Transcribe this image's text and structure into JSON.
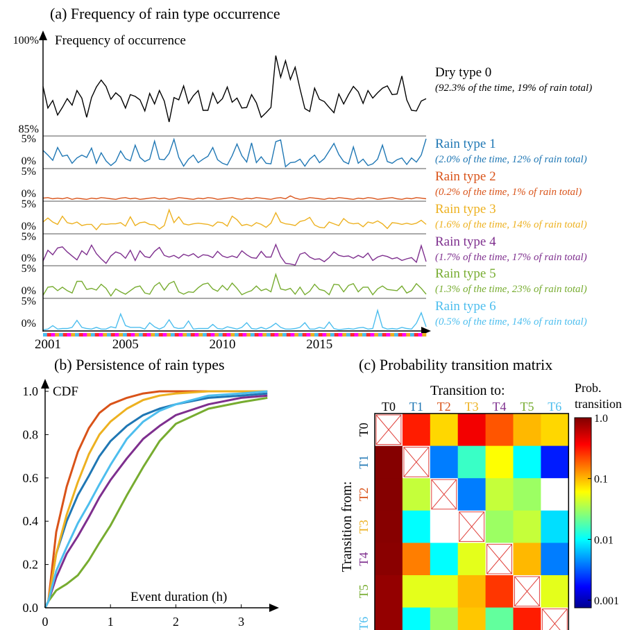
{
  "chart_data": [
    {
      "type": "line",
      "title": "(a) Frequency of rain type occurrence",
      "ylabel": "Frequency of occurrence",
      "x_start": 2000.75,
      "x_step": 0.25,
      "x_ticks": [
        "2001",
        "2005",
        "2010",
        "2015"
      ],
      "x_tick_values": [
        2001,
        2005,
        2010,
        2015
      ],
      "colors": {
        "T0": "#000000",
        "T1": "#1f77b4",
        "T2": "#d95319",
        "T3": "#edb120",
        "T4": "#7e2f8e",
        "T5": "#77ac30",
        "T6": "#4dbeee"
      },
      "panels": [
        {
          "name": "Dry type 0",
          "note": "(92.3% of the time, 19% of rain total)",
          "color": "#000000",
          "top_label": "100%",
          "bottom_label": "85%",
          "ylim": [
            85,
            100
          ],
          "values": [
            93.5,
            89.8,
            91.1,
            88.6,
            89.9,
            91.4,
            90.3,
            92.8,
            91.5,
            88.2,
            91.6,
            93.4,
            94.6,
            93.5,
            91.3,
            92.4,
            91.7,
            89.8,
            92.1,
            91.8,
            91.2,
            89.3,
            92.3,
            90.5,
            92.8,
            91.0,
            87.4,
            91.6,
            91.2,
            93.6,
            90.6,
            91.9,
            92.8,
            89.4,
            89.4,
            92.4,
            90.6,
            91.4,
            93.4,
            90.8,
            91.5,
            89.8,
            89.9,
            92.1,
            90.7,
            88.2,
            89.0,
            89.9,
            98.8,
            95.1,
            97.9,
            94.7,
            96.8,
            93.1,
            89.7,
            89.2,
            93.2,
            91.3,
            90.9,
            89.9,
            89.0,
            92.2,
            90.5,
            92.1,
            93.5,
            92.6,
            90.6,
            92.8,
            91.5,
            92.4,
            93.2,
            93.6,
            92.1,
            92.2,
            95.3,
            91.2,
            89.4,
            89.3,
            91.0,
            91.4
          ]
        },
        {
          "name": "Rain type 1",
          "note": "(2.0% of the time, 12% of rain total)",
          "color": "#1f77b4",
          "top_label": "5%",
          "bottom_label": "0%",
          "ylim": [
            0,
            5
          ],
          "values": [
            3.0,
            2.2,
            1.3,
            3.5,
            2.0,
            2.2,
            0.8,
            1.7,
            2.2,
            1.8,
            3.4,
            0.8,
            2.6,
            1.2,
            0.4,
            1.1,
            2.9,
            1.6,
            1.2,
            3.9,
            1.8,
            1.1,
            1.5,
            4.6,
            1.5,
            1.4,
            2.5,
            4.9,
            1.8,
            0.3,
            1.5,
            2.2,
            0.9,
            1.5,
            2.0,
            3.5,
            1.4,
            0.8,
            0.5,
            2.1,
            4.1,
            2.1,
            1.0,
            4.3,
            0.9,
            1.9,
            0.8,
            0.7,
            4.5,
            4.8,
            0.2,
            0.9,
            1.0,
            1.5,
            0.3,
            1.5,
            2.2,
            0.9,
            1.6,
            2.9,
            4.2,
            2.3,
            1.1,
            0.7,
            3.6,
            0.8,
            1.5,
            0.4,
            0.7,
            1.5,
            3.9,
            1.1,
            0.8,
            1.4,
            1.7,
            0.6,
            1.7,
            1.0,
            2.2,
            5.0
          ]
        },
        {
          "name": "Rain type 2",
          "note": "(0.2% of the time, 1% of rain total)",
          "color": "#d95319",
          "top_label": "5%",
          "bottom_label": "0%",
          "ylim": [
            0,
            5
          ],
          "values": [
            0.4,
            0.5,
            0.3,
            0.4,
            0.3,
            0.5,
            0.2,
            0.4,
            0.3,
            0.2,
            0.4,
            0.3,
            0.5,
            0.4,
            0.3,
            0.2,
            0.4,
            0.5,
            0.3,
            0.4,
            0.2,
            0.3,
            0.4,
            0.5,
            0.3,
            0.4,
            0.2,
            0.3,
            0.5,
            0.4,
            0.3,
            0.2,
            0.4,
            0.3,
            0.5,
            0.4,
            0.2,
            0.3,
            0.4,
            0.5,
            0.3,
            0.2,
            0.4,
            0.3,
            0.5,
            0.4,
            0.3,
            0.2,
            0.4,
            0.5,
            0.3,
            0.8,
            0.4,
            0.2,
            0.3,
            0.5,
            0.4,
            0.3,
            0.2,
            0.4,
            0.3,
            0.5,
            0.4,
            0.3,
            0.2,
            0.4,
            0.3,
            0.5,
            0.4,
            0.2,
            0.3,
            0.4,
            0.5,
            0.3,
            0.2,
            0.4,
            0.3,
            0.5,
            0.4,
            0.3
          ]
        },
        {
          "name": "Rain type 3",
          "note": "(1.6% of the time, 14% of rain total)",
          "color": "#edb120",
          "top_label": "5%",
          "bottom_label": "0%",
          "ylim": [
            0,
            5
          ],
          "values": [
            1.9,
            2.6,
            1.9,
            1.5,
            2.9,
            1.8,
            1.6,
            1.9,
            1.3,
            1.5,
            1.5,
            0.6,
            1.6,
            1.5,
            1.6,
            1.6,
            1.8,
            1.2,
            2.8,
            1.3,
            1.8,
            1.9,
            1.5,
            1.4,
            0.7,
            1.3,
            4.0,
            1.8,
            2.8,
            1.6,
            1.4,
            1.6,
            1.7,
            1.6,
            1.5,
            1.2,
            1.9,
            1.8,
            1.2,
            2.9,
            2.3,
            1.3,
            1.5,
            1.2,
            1.8,
            1.5,
            1.0,
            1.7,
            3.5,
            1.9,
            1.6,
            1.5,
            1.3,
            2.0,
            2.2,
            2.7,
            1.4,
            1.0,
            0.9,
            1.9,
            1.6,
            1.3,
            2.5,
            1.8,
            1.6,
            1.7,
            1.1,
            1.9,
            1.7,
            2.1,
            1.6,
            0.8,
            1.8,
            1.7,
            1.5,
            1.7,
            1.5,
            1.7,
            2.2,
            1.5
          ]
        },
        {
          "name": "Rain type 4",
          "note": "(1.7% of the time, 17% of rain total)",
          "color": "#7e2f8e",
          "top_label": "5%",
          "bottom_label": "0%",
          "ylim": [
            0,
            5
          ],
          "values": [
            0.7,
            2.6,
            1.8,
            3.0,
            3.2,
            2.3,
            1.6,
            0.9,
            2.5,
            1.8,
            3.5,
            2.0,
            1.1,
            0.3,
            1.6,
            2.3,
            2.0,
            1.2,
            2.6,
            0.8,
            2.5,
            1.5,
            1.3,
            2.4,
            3.1,
            1.7,
            1.4,
            1.7,
            1.2,
            1.9,
            1.6,
            2.0,
            1.3,
            1.8,
            1.7,
            1.3,
            2.4,
            1.6,
            1.3,
            1.6,
            1.3,
            2.5,
            1.8,
            1.3,
            1.2,
            2.4,
            1.4,
            1.4,
            3.6,
            1.5,
            0.3,
            0.2,
            0.0,
            1.9,
            2.2,
            1.4,
            1.0,
            1.1,
            0.6,
            1.3,
            2.3,
            1.7,
            1.5,
            1.6,
            1.2,
            1.7,
            1.3,
            2.1,
            0.8,
            1.4,
            1.7,
            1.5,
            1.1,
            1.3,
            0.8,
            1.1,
            1.3,
            0.5,
            3.4,
            0.6
          ]
        },
        {
          "name": "Rain type 5",
          "note": "(1.3% of the time, 23% of rain total)",
          "color": "#77ac30",
          "top_label": "5%",
          "bottom_label": "0%",
          "ylim": [
            0,
            5
          ],
          "values": [
            0.4,
            1.8,
            1.9,
            1.2,
            1.8,
            1.2,
            0.8,
            2.8,
            2.8,
            1.4,
            1.6,
            1.3,
            2.3,
            1.6,
            0.3,
            1.5,
            1.0,
            0.6,
            1.2,
            1.8,
            2.0,
            0.8,
            0.6,
            2.0,
            2.6,
            1.3,
            2.4,
            2.8,
            1.0,
            0.6,
            1.0,
            0.9,
            1.7,
            2.3,
            2.5,
            1.5,
            1.1,
            2.1,
            1.3,
            2.5,
            1.6,
            0.5,
            0.9,
            1.2,
            2.0,
            1.2,
            1.5,
            1.0,
            4.0,
            1.5,
            1.3,
            1.6,
            0.6,
            1.8,
            0.5,
            1.1,
            2.3,
            1.4,
            1.2,
            0.5,
            2.3,
            2.2,
            1.0,
            2.1,
            2.4,
            1.0,
            1.8,
            1.8,
            0.5,
            1.5,
            2.0,
            1.4,
            1.3,
            1.2,
            2.0,
            0.8,
            1.2,
            2.4,
            1.6,
            0.6
          ]
        },
        {
          "name": "Rain type 6",
          "note": "(0.5% of the time, 14% of rain total)",
          "color": "#4dbeee",
          "top_label": "5%",
          "bottom_label": "0%",
          "ylim": [
            0,
            5
          ],
          "values": [
            0.1,
            0.2,
            0.8,
            0.2,
            0.3,
            0.3,
            0.5,
            1.7,
            0.5,
            0.3,
            0.2,
            0.5,
            0.2,
            0.2,
            0.6,
            0.4,
            2.8,
            0.8,
            0.5,
            0.5,
            0.5,
            0.2,
            1.3,
            0.6,
            0.2,
            0.6,
            1.8,
            0.5,
            0.3,
            0.4,
            1.6,
            0.2,
            0.3,
            0.3,
            0.3,
            1.0,
            0.3,
            0.2,
            0.6,
            0.4,
            0.2,
            0.5,
            1.3,
            0.3,
            0.2,
            0.5,
            0.2,
            0.6,
            1.2,
            0.5,
            0.2,
            0.2,
            0.3,
            0.5,
            1.3,
            0.2,
            0.2,
            0.5,
            0.3,
            1.4,
            0.3,
            0.1,
            0.2,
            0.3,
            0.2,
            0.4,
            0.5,
            0.2,
            0.3,
            3.4,
            0.5,
            0.2,
            0.3,
            0.2,
            0.5,
            0.3,
            0.2,
            1.2,
            3.0,
            0.6
          ]
        }
      ]
    },
    {
      "type": "line",
      "title": "(b) Persistence of rain types",
      "xlabel": "Event duration (h)",
      "ylabel": "CDF",
      "xlim": [
        0,
        3.45
      ],
      "ylim": [
        0,
        1.0
      ],
      "x_ticks": [
        0,
        1,
        2,
        3
      ],
      "y_ticks": [
        "0.0",
        "0.2",
        "0.4",
        "0.6",
        "0.8",
        "1.0"
      ],
      "y_tick_values": [
        0,
        0.2,
        0.4,
        0.6,
        0.8,
        1.0
      ],
      "series": [
        {
          "key": "T1",
          "color": "#1f77b4",
          "x": [
            0.05,
            0.17,
            0.33,
            0.5,
            0.67,
            0.83,
            1.0,
            1.25,
            1.5,
            1.75,
            2.0,
            2.5,
            3.0,
            3.4
          ],
          "y": [
            0.03,
            0.25,
            0.4,
            0.52,
            0.61,
            0.7,
            0.77,
            0.84,
            0.89,
            0.92,
            0.94,
            0.97,
            0.98,
            0.99
          ]
        },
        {
          "key": "T2",
          "color": "#d95319",
          "x": [
            0.05,
            0.17,
            0.33,
            0.5,
            0.67,
            0.83,
            1.0,
            1.25,
            1.5,
            1.75,
            2.0,
            2.5,
            3.0,
            3.4
          ],
          "y": [
            0.03,
            0.35,
            0.56,
            0.72,
            0.83,
            0.9,
            0.94,
            0.97,
            0.99,
            1.0,
            1.0,
            1.0,
            1.0,
            1.0
          ]
        },
        {
          "key": "T3",
          "color": "#edb120",
          "x": [
            0.05,
            0.17,
            0.33,
            0.5,
            0.67,
            0.83,
            1.0,
            1.25,
            1.5,
            1.75,
            2.0,
            2.5,
            3.0,
            3.4
          ],
          "y": [
            0.03,
            0.25,
            0.43,
            0.58,
            0.71,
            0.8,
            0.86,
            0.92,
            0.96,
            0.98,
            0.99,
            1.0,
            1.0,
            1.0
          ]
        },
        {
          "key": "T4",
          "color": "#7e2f8e",
          "x": [
            0.05,
            0.17,
            0.33,
            0.5,
            0.67,
            0.83,
            1.0,
            1.25,
            1.5,
            1.75,
            2.0,
            2.5,
            3.0,
            3.4
          ],
          "y": [
            0.03,
            0.14,
            0.25,
            0.33,
            0.42,
            0.51,
            0.59,
            0.69,
            0.78,
            0.84,
            0.89,
            0.94,
            0.97,
            0.98
          ]
        },
        {
          "key": "T5",
          "color": "#77ac30",
          "x": [
            0.05,
            0.17,
            0.33,
            0.5,
            0.67,
            0.83,
            1.0,
            1.25,
            1.5,
            1.75,
            2.0,
            2.5,
            3.0,
            3.4
          ],
          "y": [
            0.03,
            0.08,
            0.11,
            0.15,
            0.22,
            0.3,
            0.38,
            0.52,
            0.65,
            0.77,
            0.85,
            0.92,
            0.95,
            0.97
          ]
        },
        {
          "key": "T6",
          "color": "#4dbeee",
          "x": [
            0.05,
            0.17,
            0.33,
            0.5,
            0.67,
            0.83,
            1.0,
            1.25,
            1.5,
            1.75,
            2.0,
            2.5,
            3.0,
            3.4
          ],
          "y": [
            0.03,
            0.17,
            0.28,
            0.39,
            0.48,
            0.57,
            0.66,
            0.78,
            0.86,
            0.91,
            0.94,
            0.98,
            0.99,
            1.0
          ]
        }
      ]
    },
    {
      "type": "heatmap",
      "title": "(c) Probability transition matrix",
      "xlabel": "Transition to:",
      "ylabel": "Transition from:",
      "labels": [
        "T0",
        "T1",
        "T2",
        "T3",
        "T4",
        "T5",
        "T6"
      ],
      "label_colors": [
        "#000000",
        "#1f77b4",
        "#d95319",
        "#edb120",
        "#7e2f8e",
        "#77ac30",
        "#4dbeee"
      ],
      "colorbar_title": [
        "Prob.",
        "transition"
      ],
      "colorbar_ticks": [
        "1.0",
        "0.1",
        "0.01",
        "0.001"
      ],
      "colorbar_tick_values": [
        1.0,
        0.1,
        0.01,
        0.001
      ],
      "scale": "log",
      "vmin": 0.00075,
      "vmax": 1.0,
      "matrix": [
        [
          null,
          0.3,
          0.08,
          0.4,
          0.2,
          0.1,
          0.08
        ],
        [
          0.96,
          null,
          0.004,
          0.015,
          0.06,
          0.01,
          0.002
        ],
        [
          0.96,
          0.04,
          null,
          0.004,
          0.04,
          0.03,
          0.0
        ],
        [
          0.94,
          0.01,
          0.0,
          null,
          0.03,
          0.04,
          0.008
        ],
        [
          0.92,
          0.15,
          0.01,
          0.05,
          null,
          0.1,
          0.004
        ],
        [
          0.85,
          0.05,
          0.05,
          0.1,
          0.25,
          null,
          0.05
        ],
        [
          0.85,
          0.01,
          0.03,
          0.09,
          0.02,
          0.3,
          null
        ]
      ]
    }
  ]
}
